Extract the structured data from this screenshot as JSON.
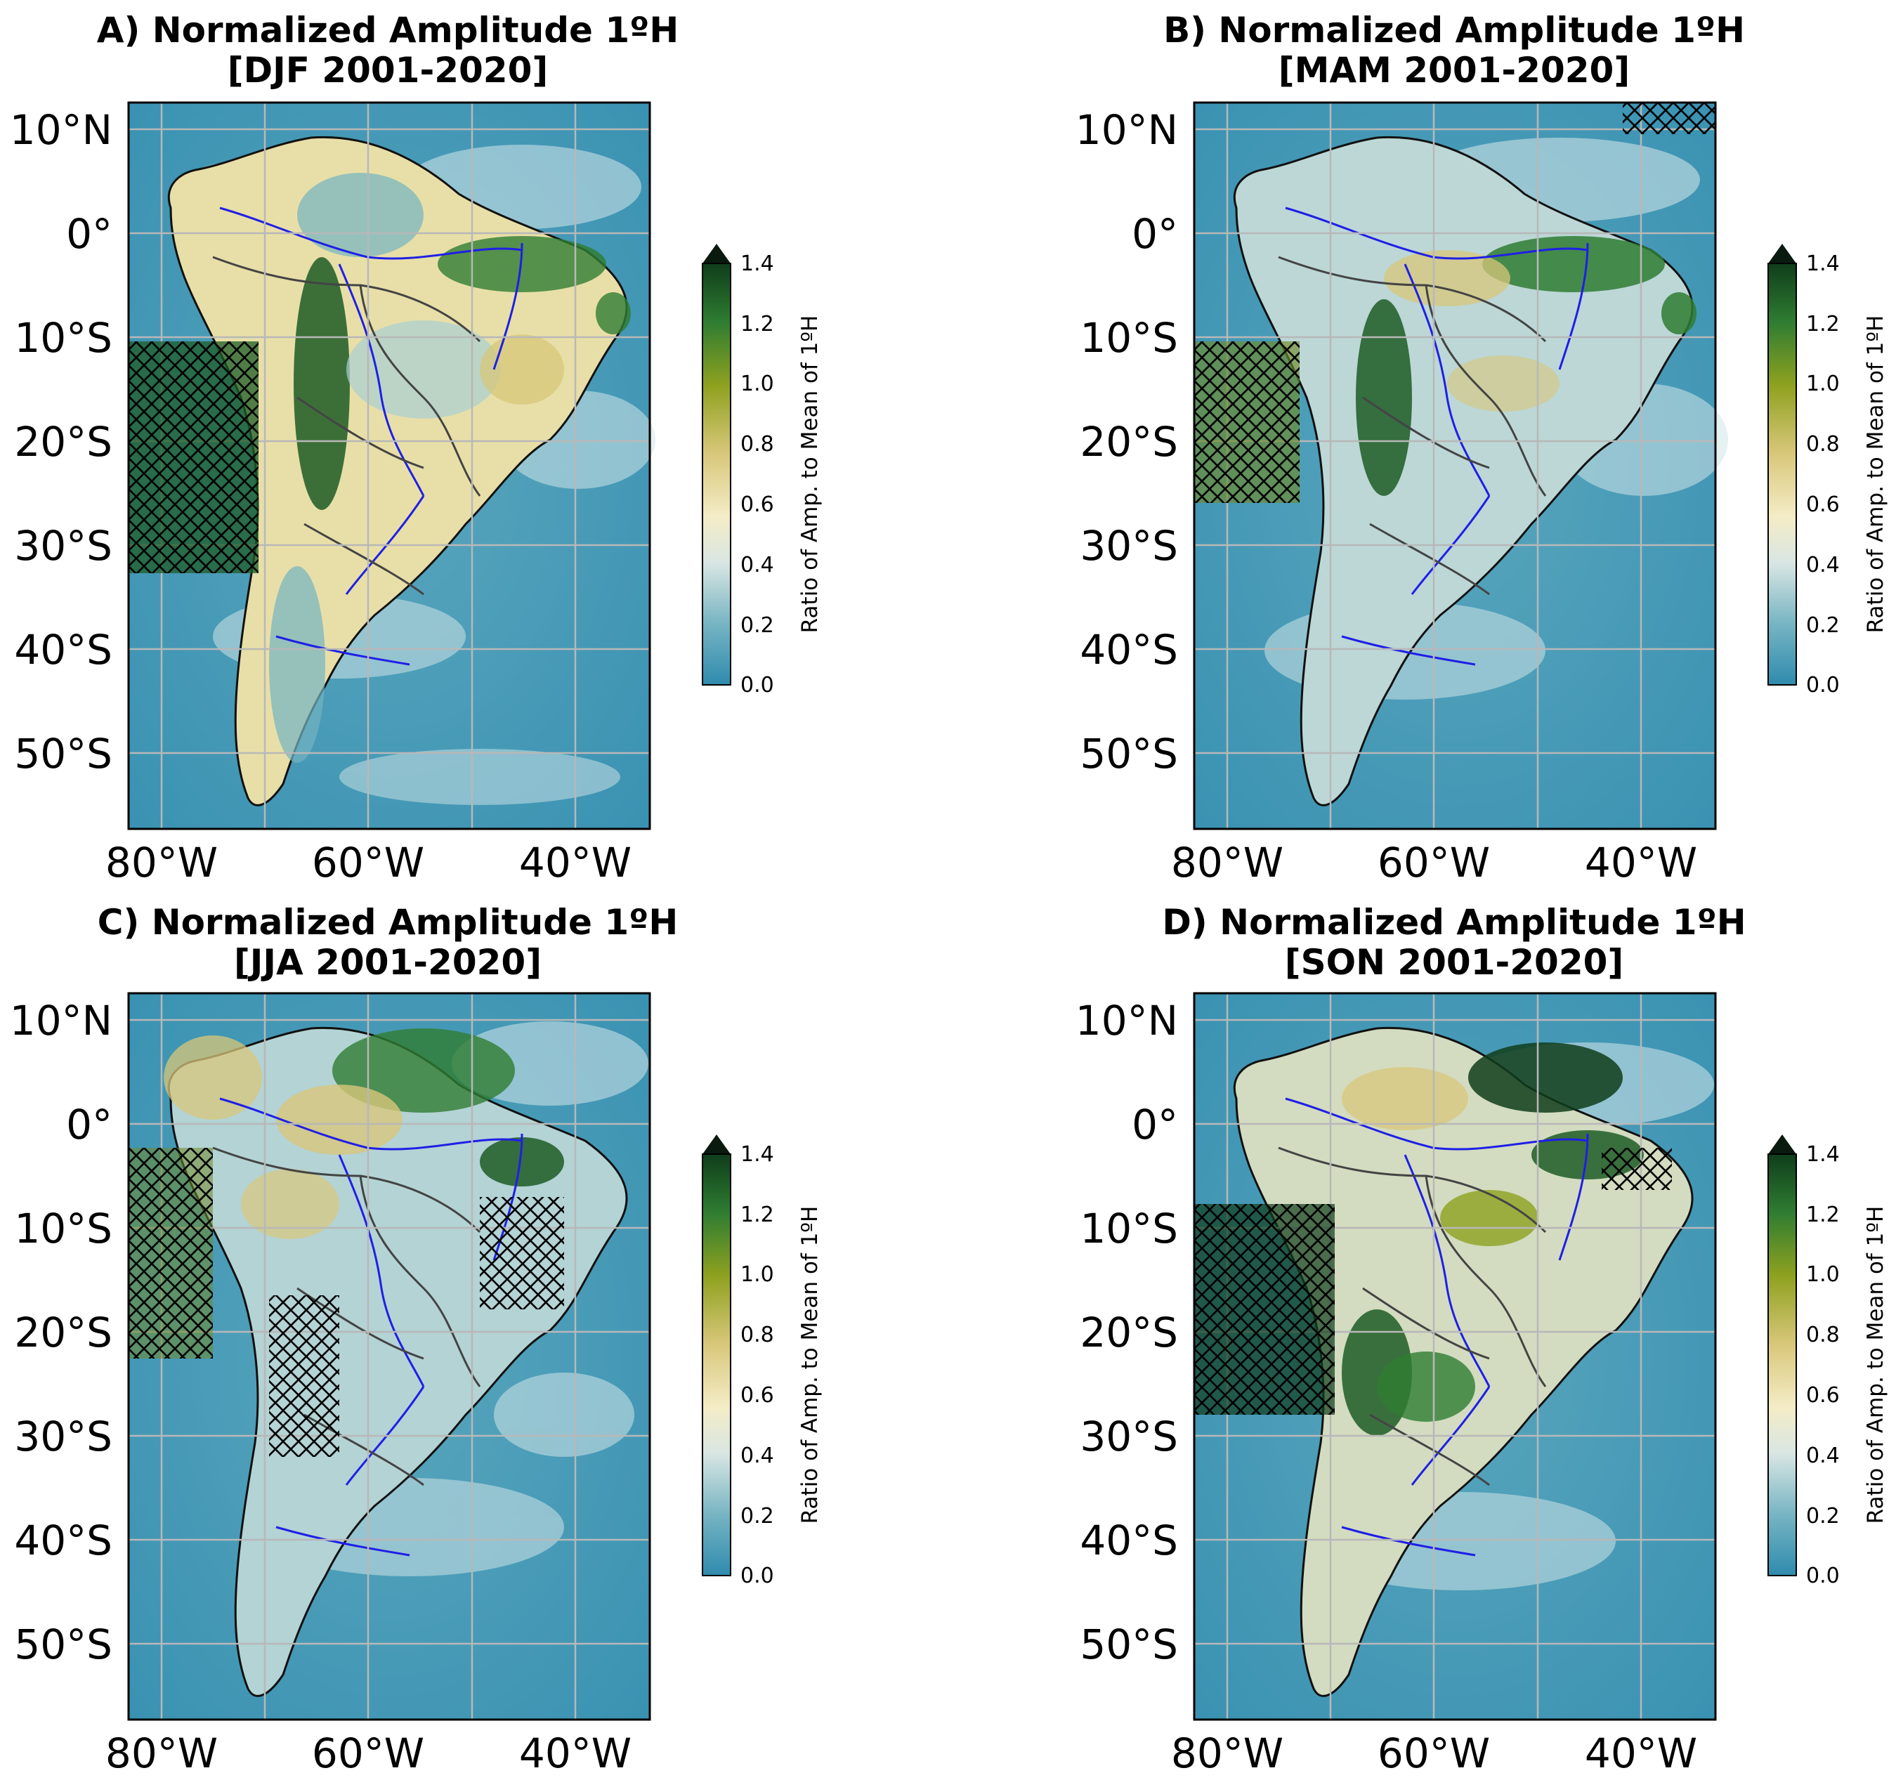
{
  "panels": [
    {
      "title_line1": "A) Normalized Amplitude 1ºH",
      "title_line2": "[DJF 2001-2020]"
    },
    {
      "title_line1": "B) Normalized Amplitude 1ºH",
      "title_line2": "[MAM 2001-2020]"
    },
    {
      "title_line1": "C) Normalized Amplitude 1ºH",
      "title_line2": "[JJA 2001-2020]"
    },
    {
      "title_line1": "D) Normalized Amplitude 1ºH",
      "title_line2": "[SON 2001-2020]"
    }
  ],
  "lat_labels": [
    "10°N",
    "0°",
    "10°S",
    "20°S",
    "30°S",
    "40°S",
    "50°S"
  ],
  "lon_labels": [
    "80°W",
    "60°W",
    "40°W"
  ],
  "colorbar": {
    "label": "Ratio of Amp. to Mean of 1ºH",
    "ticks": [
      "0.0",
      "0.2",
      "0.4",
      "0.6",
      "0.8",
      "1.0",
      "1.2",
      "1.4"
    ],
    "extend": "max",
    "colors": [
      "#2f8bae",
      "#74b3c2",
      "#d9e6e3",
      "#f4ecc6",
      "#d8c77a",
      "#8fa11f",
      "#2f7d32",
      "#0f3d1b",
      "#0a1a0f"
    ]
  },
  "colors": {
    "coastline": "#111111",
    "borders": "#444444",
    "rivers": "#1f1fe6",
    "contours": "#b03030",
    "grid": "#b8b8b8",
    "hatch": "#000000"
  }
}
